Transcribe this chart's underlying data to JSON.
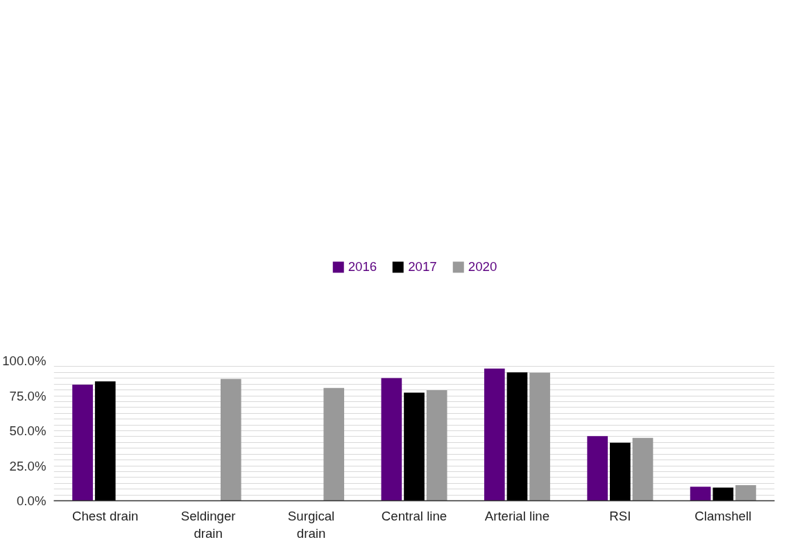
{
  "chart_data": {
    "type": "bar",
    "categories": [
      "Chest drain",
      "Seldinger\ndrain",
      "Surgical\ndrain",
      "Central line",
      "Arterial line",
      "RSI",
      "Clamshell"
    ],
    "series": [
      {
        "name": "2016",
        "color": "#5b0080",
        "values": [
          82.9,
          null,
          null,
          87.6,
          94.4,
          46.2,
          10.0
        ]
      },
      {
        "name": "2017",
        "color": "#000000",
        "values": [
          85.3,
          null,
          null,
          77.2,
          91.7,
          41.5,
          9.4
        ]
      },
      {
        "name": "2020",
        "color": "#999999",
        "values": [
          null,
          87.0,
          80.6,
          79.0,
          91.5,
          44.9,
          11.1
        ]
      }
    ],
    "ylim": [
      0,
      100
    ],
    "yticks": [
      {
        "value": 0,
        "label": "0.0%"
      },
      {
        "value": 4.1667,
        "label": null
      },
      {
        "value": 8.3333,
        "label": null
      },
      {
        "value": 12.5,
        "label": null
      },
      {
        "value": 16.6667,
        "label": null
      },
      {
        "value": 20.8333,
        "label": null
      },
      {
        "value": 25,
        "label": "25.0%"
      },
      {
        "value": 29.1667,
        "label": null
      },
      {
        "value": 33.3333,
        "label": null
      },
      {
        "value": 37.5,
        "label": null
      },
      {
        "value": 41.6667,
        "label": null
      },
      {
        "value": 45.8333,
        "label": null
      },
      {
        "value": 50,
        "label": "50.0%"
      },
      {
        "value": 54.1667,
        "label": null
      },
      {
        "value": 58.3333,
        "label": null
      },
      {
        "value": 62.5,
        "label": null
      },
      {
        "value": 66.6667,
        "label": null
      },
      {
        "value": 70.8333,
        "label": null
      },
      {
        "value": 75,
        "label": "75.0%"
      },
      {
        "value": 79.1667,
        "label": null
      },
      {
        "value": 83.3333,
        "label": null
      },
      {
        "value": 87.5,
        "label": null
      },
      {
        "value": 91.6667,
        "label": null
      },
      {
        "value": 95.8333,
        "label": null
      },
      {
        "value": 100,
        "label": "100.0%"
      }
    ],
    "grid": "y",
    "legend": "top"
  }
}
